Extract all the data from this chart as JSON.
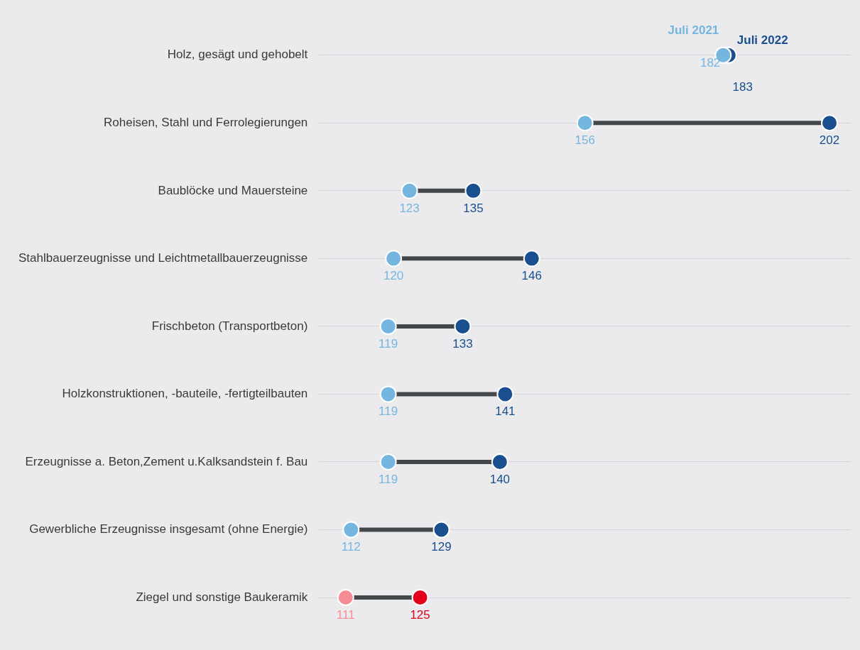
{
  "chart_data": {
    "type": "scatter",
    "orientation": "horizontal",
    "categories": [
      "Holz, gesägt und gehobelt",
      "Roheisen, Stahl und Ferrolegierungen",
      "Baublöcke und Mauersteine",
      "Stahlbauerzeugnisse und Leichtmetallbauerzeugnisse",
      "Frischbeton (Transportbeton)",
      "Holzkonstruktionen, -bauteile, -fertigteilbauten",
      "Erzeugnisse a. Beton,Zement u.Kalksandstein f. Bau",
      "Gewerbliche Erzeugnisse insgesamt (ohne Energie)",
      "Ziegel und sonstige Baukeramik"
    ],
    "series": [
      {
        "name": "Juli 2021",
        "color": "#74b6e0",
        "colors": [
          "#74b6e0",
          "#74b6e0",
          "#74b6e0",
          "#74b6e0",
          "#74b6e0",
          "#74b6e0",
          "#74b6e0",
          "#74b6e0",
          "#f68d96"
        ],
        "values": [
          182,
          156,
          123,
          120,
          119,
          119,
          119,
          112,
          111
        ]
      },
      {
        "name": "Juli 2022",
        "color": "#194f8e",
        "colors": [
          "#194f8e",
          "#194f8e",
          "#194f8e",
          "#194f8e",
          "#194f8e",
          "#194f8e",
          "#194f8e",
          "#194f8e",
          "#e2001a"
        ],
        "values": [
          183,
          202,
          135,
          146,
          133,
          141,
          140,
          129,
          125
        ]
      }
    ],
    "xlim": [
      106,
      206
    ],
    "data_labels": true,
    "grid": "y",
    "legend": false,
    "tick_labels": "y",
    "marker": "circle"
  }
}
